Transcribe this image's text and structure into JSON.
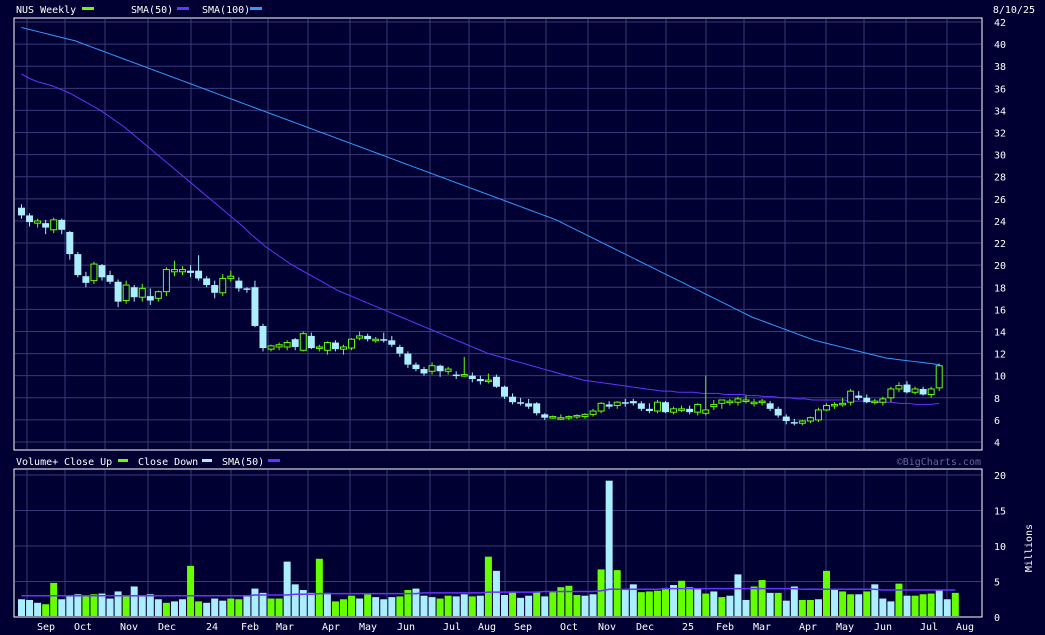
{
  "header": {
    "ticker_label": "NUS Weekly",
    "sma1_label": "SMA(50)",
    "sma2_label": "SMA(100)",
    "date": "8/10/25"
  },
  "volume_header": {
    "vol_label": "Volume+",
    "close_up_label": "Close Up",
    "close_down_label": "Close Down",
    "sma_label": "SMA(50)",
    "credit": "©BigCharts.com",
    "units": "Millions"
  },
  "colors": {
    "background": "#000033",
    "grid": "#3a3a7a",
    "up": "#66ff00",
    "down": "#aaeeff",
    "sma50": "#6633ff",
    "sma100": "#3399ff",
    "vol_sma": "#6633ff"
  },
  "chart_data": [
    {
      "type": "candlestick",
      "title": "NUS Weekly",
      "ylim": [
        4,
        42
      ],
      "yticks": [
        4,
        6,
        8,
        10,
        12,
        14,
        16,
        18,
        20,
        22,
        24,
        26,
        28,
        30,
        32,
        34,
        36,
        38,
        40,
        42
      ],
      "xticks": [
        "Sep",
        "Oct",
        "Nov",
        "Dec",
        "24",
        "Feb",
        "Mar",
        "Apr",
        "May",
        "Jun",
        "Jul",
        "Aug",
        "Sep",
        "Oct",
        "Nov",
        "Dec",
        "25",
        "Feb",
        "Mar",
        "Apr",
        "May",
        "Jun",
        "Jul",
        "Aug"
      ],
      "candles": [
        [
          25.2,
          25.5,
          24.2,
          24.5
        ],
        [
          24.5,
          24.7,
          23.5,
          23.9
        ],
        [
          23.8,
          24.2,
          23.4,
          24.0
        ],
        [
          23.8,
          24.1,
          22.8,
          23.4
        ],
        [
          23.2,
          24.3,
          22.9,
          24.1
        ],
        [
          24.1,
          24.2,
          22.8,
          23.2
        ],
        [
          23.0,
          23.1,
          20.5,
          21.0
        ],
        [
          21.0,
          21.2,
          18.9,
          19.1
        ],
        [
          19.0,
          19.4,
          18.0,
          18.4
        ],
        [
          18.6,
          20.3,
          18.3,
          20.1
        ],
        [
          20.0,
          20.1,
          18.6,
          18.9
        ],
        [
          19.1,
          19.5,
          18.3,
          18.5
        ],
        [
          18.5,
          18.7,
          16.2,
          16.7
        ],
        [
          16.8,
          18.6,
          16.5,
          18.2
        ],
        [
          18.0,
          18.2,
          16.7,
          17.1
        ],
        [
          17.1,
          18.3,
          16.7,
          17.9
        ],
        [
          17.2,
          17.9,
          16.4,
          16.8
        ],
        [
          17.0,
          17.7,
          16.7,
          17.6
        ],
        [
          17.6,
          19.8,
          17.2,
          19.6
        ],
        [
          19.4,
          20.4,
          19.0,
          19.6
        ],
        [
          19.4,
          19.9,
          19.1,
          19.6
        ],
        [
          19.5,
          20.0,
          18.9,
          19.3
        ],
        [
          19.5,
          20.9,
          18.6,
          18.8
        ],
        [
          18.8,
          19.0,
          18.0,
          18.2
        ],
        [
          18.2,
          18.6,
          17.0,
          17.5
        ],
        [
          17.5,
          19.2,
          17.2,
          18.8
        ],
        [
          18.8,
          19.5,
          18.5,
          19.0
        ],
        [
          18.6,
          18.9,
          17.6,
          17.9
        ],
        [
          17.9,
          18.0,
          17.5,
          17.8
        ],
        [
          18.0,
          18.6,
          14.4,
          14.5
        ],
        [
          14.5,
          14.7,
          12.2,
          12.5
        ],
        [
          12.4,
          12.8,
          12.2,
          12.7
        ],
        [
          12.6,
          13.0,
          12.3,
          12.8
        ],
        [
          12.6,
          13.2,
          12.3,
          13.0
        ],
        [
          13.3,
          13.4,
          12.3,
          12.6
        ],
        [
          12.3,
          14.0,
          12.2,
          13.8
        ],
        [
          13.6,
          13.9,
          12.4,
          12.5
        ],
        [
          12.5,
          12.8,
          12.2,
          12.6
        ],
        [
          12.3,
          13.1,
          11.9,
          13.0
        ],
        [
          13.0,
          13.2,
          12.2,
          12.4
        ],
        [
          12.4,
          12.8,
          11.9,
          12.6
        ],
        [
          12.5,
          13.4,
          12.3,
          13.3
        ],
        [
          13.4,
          14.0,
          13.2,
          13.6
        ],
        [
          13.6,
          13.8,
          13.1,
          13.3
        ],
        [
          13.3,
          13.5,
          13.0,
          13.3
        ],
        [
          13.3,
          13.9,
          13.0,
          13.2
        ],
        [
          13.2,
          13.6,
          12.6,
          12.8
        ],
        [
          12.6,
          12.8,
          11.7,
          12.0
        ],
        [
          12.0,
          12.2,
          10.7,
          11.0
        ],
        [
          11.0,
          11.2,
          10.4,
          10.6
        ],
        [
          10.6,
          10.8,
          10.0,
          10.2
        ],
        [
          10.4,
          11.2,
          10.1,
          10.9
        ],
        [
          10.9,
          11.0,
          9.9,
          10.4
        ],
        [
          10.4,
          10.8,
          10.1,
          10.6
        ],
        [
          10.1,
          10.4,
          9.7,
          10.0
        ],
        [
          10.1,
          11.7,
          9.9,
          10.1
        ],
        [
          10.0,
          10.3,
          9.4,
          9.7
        ],
        [
          9.7,
          10.0,
          9.2,
          9.5
        ],
        [
          9.5,
          10.2,
          9.3,
          9.6
        ],
        [
          9.9,
          10.1,
          8.9,
          9.0
        ],
        [
          9.0,
          9.1,
          7.9,
          8.1
        ],
        [
          8.1,
          8.4,
          7.4,
          7.6
        ],
        [
          7.6,
          8.0,
          7.3,
          7.5
        ],
        [
          7.5,
          7.9,
          7.0,
          7.2
        ],
        [
          7.5,
          7.6,
          6.4,
          6.6
        ],
        [
          6.5,
          6.6,
          6.0,
          6.2
        ],
        [
          6.3,
          6.4,
          6.1,
          6.3
        ],
        [
          6.2,
          6.5,
          6.0,
          6.2
        ],
        [
          6.2,
          6.4,
          6.0,
          6.3
        ],
        [
          6.3,
          6.5,
          6.1,
          6.4
        ],
        [
          6.3,
          6.6,
          6.1,
          6.5
        ],
        [
          6.5,
          7.0,
          6.3,
          6.8
        ],
        [
          6.8,
          7.6,
          6.6,
          7.5
        ],
        [
          7.4,
          7.7,
          7.0,
          7.2
        ],
        [
          7.3,
          7.7,
          7.0,
          7.6
        ],
        [
          7.6,
          7.9,
          7.2,
          7.5
        ],
        [
          7.7,
          7.9,
          7.3,
          7.5
        ],
        [
          7.5,
          7.7,
          6.8,
          7.0
        ],
        [
          7.0,
          7.5,
          6.6,
          6.8
        ],
        [
          6.8,
          7.8,
          6.6,
          7.6
        ],
        [
          7.6,
          7.7,
          6.6,
          6.7
        ],
        [
          6.7,
          7.2,
          6.5,
          7.0
        ],
        [
          6.9,
          7.3,
          6.7,
          7.0
        ],
        [
          7.0,
          7.3,
          6.5,
          6.7
        ],
        [
          6.7,
          7.5,
          6.4,
          7.4
        ],
        [
          6.6,
          10.0,
          6.4,
          6.9
        ],
        [
          7.2,
          7.8,
          6.9,
          7.4
        ],
        [
          7.5,
          7.8,
          7.0,
          7.8
        ],
        [
          7.6,
          7.9,
          7.3,
          7.7
        ],
        [
          7.6,
          8.1,
          7.3,
          7.9
        ],
        [
          7.8,
          8.2,
          7.5,
          7.8
        ],
        [
          7.5,
          7.9,
          7.2,
          7.6
        ],
        [
          7.6,
          7.9,
          7.3,
          7.7
        ],
        [
          7.5,
          7.7,
          6.8,
          7.0
        ],
        [
          7.0,
          7.2,
          6.2,
          6.4
        ],
        [
          6.3,
          6.5,
          5.6,
          5.9
        ],
        [
          5.8,
          6.1,
          5.5,
          5.7
        ],
        [
          5.7,
          6.0,
          5.5,
          5.9
        ],
        [
          5.9,
          6.3,
          5.7,
          6.2
        ],
        [
          6.0,
          7.1,
          5.8,
          6.9
        ],
        [
          6.9,
          7.5,
          6.8,
          7.3
        ],
        [
          7.3,
          7.6,
          7.0,
          7.4
        ],
        [
          7.4,
          8.0,
          7.2,
          7.5
        ],
        [
          7.6,
          8.8,
          7.3,
          8.6
        ],
        [
          8.2,
          8.6,
          7.8,
          8.0
        ],
        [
          8.0,
          8.3,
          7.5,
          7.6
        ],
        [
          7.6,
          7.9,
          7.4,
          7.7
        ],
        [
          7.6,
          8.1,
          7.3,
          7.9
        ],
        [
          8.0,
          9.0,
          7.6,
          8.8
        ],
        [
          8.8,
          9.4,
          8.5,
          9.1
        ],
        [
          9.2,
          9.5,
          8.4,
          8.5
        ],
        [
          8.5,
          9.0,
          8.3,
          8.8
        ],
        [
          8.8,
          9.0,
          8.2,
          8.3
        ],
        [
          8.3,
          9.0,
          8.0,
          8.8
        ],
        [
          8.9,
          11.1,
          8.6,
          10.9
        ]
      ],
      "sma50": [
        37.3,
        36.9,
        36.6,
        36.4,
        36.2,
        35.9,
        35.6,
        35.2,
        34.8,
        34.4,
        34.0,
        33.5,
        33.0,
        32.5,
        31.9,
        31.3,
        30.7,
        30.1,
        29.5,
        28.9,
        28.3,
        27.7,
        27.1,
        26.5,
        25.9,
        25.3,
        24.7,
        24.1,
        23.5,
        22.8,
        22.2,
        21.6,
        21.1,
        20.6,
        20.1,
        19.7,
        19.3,
        18.9,
        18.5,
        18.1,
        17.7,
        17.4,
        17.1,
        16.8,
        16.5,
        16.2,
        15.9,
        15.6,
        15.3,
        15.0,
        14.7,
        14.4,
        14.1,
        13.8,
        13.5,
        13.2,
        12.9,
        12.6,
        12.3,
        12.0,
        11.8,
        11.6,
        11.4,
        11.2,
        11.0,
        10.8,
        10.6,
        10.4,
        10.2,
        10.0,
        9.8,
        9.6,
        9.5,
        9.4,
        9.3,
        9.2,
        9.1,
        9.0,
        8.9,
        8.8,
        8.7,
        8.6,
        8.6,
        8.5,
        8.5,
        8.5,
        8.4,
        8.4,
        8.4,
        8.3,
        8.3,
        8.3,
        8.2,
        8.2,
        8.1,
        8.1,
        8.0,
        8.0,
        7.9,
        7.9,
        7.8,
        7.8,
        7.8,
        7.8,
        7.8,
        7.7,
        7.7,
        7.7,
        7.6,
        7.6,
        7.6,
        7.5,
        7.5,
        7.4,
        7.4,
        7.4,
        7.5
      ],
      "sma100": [
        41.5,
        41.3,
        41.1,
        40.9,
        40.7,
        40.5,
        40.3,
        40.0,
        39.7,
        39.4,
        39.1,
        38.8,
        38.5,
        38.2,
        37.9,
        37.6,
        37.3,
        37.0,
        36.7,
        36.4,
        36.1,
        35.8,
        35.5,
        35.2,
        34.9,
        34.6,
        34.3,
        34.0,
        33.7,
        33.4,
        33.1,
        32.8,
        32.5,
        32.2,
        31.9,
        31.6,
        31.3,
        31.0,
        30.7,
        30.4,
        30.1,
        29.8,
        29.5,
        29.2,
        28.9,
        28.6,
        28.3,
        28.0,
        27.7,
        27.4,
        27.1,
        26.8,
        26.5,
        26.2,
        25.9,
        25.6,
        25.3,
        25.0,
        24.7,
        24.4,
        24.1,
        23.7,
        23.3,
        22.9,
        22.5,
        22.1,
        21.7,
        21.3,
        20.9,
        20.5,
        20.1,
        19.7,
        19.3,
        18.9,
        18.5,
        18.1,
        17.7,
        17.3,
        16.9,
        16.5,
        16.1,
        15.7,
        15.3,
        15.0,
        14.7,
        14.4,
        14.1,
        13.8,
        13.5,
        13.2,
        13.0,
        12.8,
        12.6,
        12.4,
        12.2,
        12.0,
        11.8,
        11.6,
        11.5,
        11.4,
        11.3,
        11.2,
        11.1,
        11.0
      ]
    },
    {
      "type": "bar",
      "title": "Volume",
      "ylabel": "Millions",
      "ylim": [
        0,
        20
      ],
      "yticks": [
        0,
        5,
        10,
        15,
        20
      ],
      "volume": [
        2.5,
        2.4,
        2.0,
        1.8,
        4.8,
        2.5,
        3.0,
        3.2,
        3.0,
        3.2,
        3.3,
        2.6,
        3.6,
        2.9,
        4.3,
        3.0,
        3.2,
        2.5,
        2.0,
        2.2,
        2.5,
        7.2,
        2.2,
        2.0,
        2.6,
        2.3,
        2.6,
        2.5,
        2.9,
        4.0,
        3.4,
        2.6,
        2.6,
        7.8,
        4.6,
        3.8,
        3.4,
        8.2,
        3.4,
        2.2,
        2.5,
        3.0,
        2.6,
        3.2,
        2.8,
        2.5,
        2.8,
        2.9,
        3.8,
        4.0,
        3.0,
        2.8,
        2.6,
        3.0,
        2.9,
        3.2,
        2.9,
        3.0,
        8.5,
        6.5,
        3.1,
        3.6,
        2.7,
        3.0,
        3.6,
        2.9,
        3.5,
        4.2,
        4.4,
        3.1,
        3.0,
        3.2,
        6.7,
        19.2,
        6.6,
        3.8,
        4.6,
        3.5,
        3.6,
        3.7,
        4.1,
        4.5,
        5.1,
        4.2,
        4.0,
        3.3,
        3.6,
        2.8,
        3.0,
        6.0,
        2.4,
        4.3,
        5.2,
        3.4,
        3.4,
        2.3,
        4.3,
        2.4,
        2.4,
        2.5,
        6.5,
        4.0,
        3.6,
        3.2,
        3.2,
        3.6,
        4.6,
        2.6,
        2.2,
        4.7,
        3.0,
        3.0,
        3.2,
        3.3,
        3.8,
        2.5,
        3.4
      ],
      "volume_up": [
        false,
        false,
        false,
        true,
        true,
        false,
        false,
        false,
        true,
        true,
        false,
        false,
        false,
        true,
        false,
        false,
        false,
        false,
        true,
        false,
        false,
        true,
        true,
        false,
        false,
        false,
        true,
        true,
        false,
        false,
        false,
        true,
        true,
        false,
        false,
        false,
        false,
        true,
        false,
        true,
        true,
        true,
        false,
        true,
        false,
        false,
        false,
        true,
        true,
        false,
        false,
        false,
        true,
        true,
        false,
        false,
        true,
        false,
        true,
        false,
        false,
        true,
        false,
        false,
        true,
        false,
        true,
        true,
        true,
        true,
        false,
        false,
        true,
        false,
        true,
        false,
        false,
        true,
        true,
        true,
        true,
        false,
        true,
        true,
        false,
        true,
        false,
        true,
        false,
        false,
        false,
        true,
        true,
        false,
        true,
        false,
        false,
        true,
        true,
        false,
        true,
        false,
        true,
        true,
        false,
        true,
        false,
        false,
        false,
        true,
        false,
        true,
        true,
        true,
        false,
        false,
        true,
        true,
        true
      ],
      "vol_sma": [
        3.0,
        3.0,
        3.0,
        3.0,
        3.0,
        3.0,
        3.0,
        3.0,
        3.0,
        3.0,
        3.0,
        3.0,
        3.0,
        3.0,
        3.0,
        3.0,
        3.0,
        3.0,
        3.0,
        3.0,
        3.0,
        3.0,
        3.0,
        3.0,
        3.0,
        3.0,
        3.0,
        3.0,
        3.0,
        3.1,
        3.1,
        3.1,
        3.1,
        3.1,
        3.2,
        3.2,
        3.2,
        3.3,
        3.3,
        3.3,
        3.3,
        3.3,
        3.3,
        3.3,
        3.3,
        3.3,
        3.3,
        3.3,
        3.3,
        3.3,
        3.4,
        3.4,
        3.4,
        3.4,
        3.4,
        3.4,
        3.4,
        3.4,
        3.5,
        3.5,
        3.5,
        3.5,
        3.5,
        3.5,
        3.5,
        3.6,
        3.6,
        3.6,
        3.6,
        3.6,
        3.6,
        3.6,
        3.7,
        3.9,
        3.9,
        3.9,
        3.9,
        3.9,
        3.9,
        3.9,
        4.0,
        4.0,
        4.0,
        4.0,
        4.0,
        4.0,
        4.0,
        4.0,
        4.0,
        4.0,
        4.0,
        4.0,
        4.0,
        4.0,
        4.0,
        4.0,
        4.0,
        3.9,
        3.9,
        3.9,
        3.9,
        3.9,
        3.9,
        3.9,
        3.9,
        3.9,
        3.9,
        3.8,
        3.8,
        3.8,
        3.8,
        3.8,
        3.8,
        3.8,
        3.8,
        3.8,
        3.8
      ]
    }
  ]
}
